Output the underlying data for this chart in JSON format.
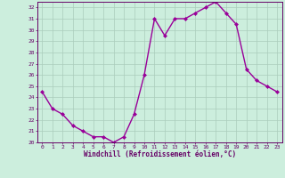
{
  "hours": [
    0,
    1,
    2,
    3,
    4,
    5,
    6,
    7,
    8,
    9,
    10,
    11,
    12,
    13,
    14,
    15,
    16,
    17,
    18,
    19,
    20,
    21,
    22,
    23
  ],
  "values": [
    24.5,
    23.0,
    22.5,
    21.5,
    21.0,
    20.5,
    20.5,
    20.0,
    20.5,
    22.5,
    26.0,
    31.0,
    29.5,
    31.0,
    31.0,
    31.5,
    32.0,
    32.5,
    31.5,
    30.5,
    26.5,
    25.5,
    25.0,
    24.5
  ],
  "line_color": "#990099",
  "marker": "D",
  "marker_size": 2.0,
  "bg_color": "#cceedd",
  "grid_color": "#aaccbb",
  "axis_color": "#660066",
  "xlabel": "Windchill (Refroidissement éolien,°C)",
  "xlabel_color": "#660066",
  "tick_color": "#660066",
  "ylim": [
    20,
    32.5
  ],
  "yticks": [
    20,
    21,
    22,
    23,
    24,
    25,
    26,
    27,
    28,
    29,
    30,
    31,
    32
  ],
  "xlim": [
    -0.5,
    23.5
  ],
  "xticks": [
    0,
    1,
    2,
    3,
    4,
    5,
    6,
    7,
    8,
    9,
    10,
    11,
    12,
    13,
    14,
    15,
    16,
    17,
    18,
    19,
    20,
    21,
    22,
    23
  ],
  "linewidth": 1.0
}
